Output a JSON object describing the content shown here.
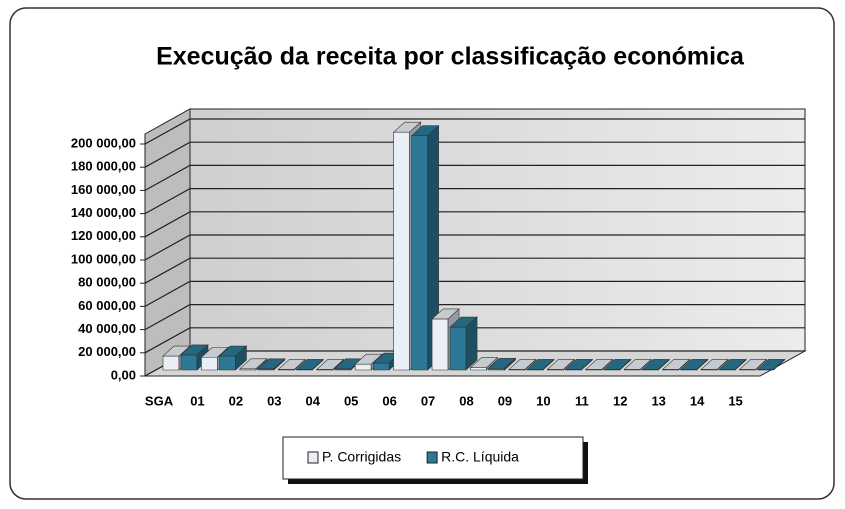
{
  "chart_data": {
    "type": "bar3d",
    "title": "Execução da receita por classificação económica",
    "categories": [
      "SGA",
      "01",
      "02",
      "03",
      "04",
      "05",
      "06",
      "07",
      "08",
      "09",
      "10",
      "11",
      "12",
      "13",
      "14",
      "15"
    ],
    "series": [
      {
        "name": "P. Corrigidas",
        "color": "#e9eff5",
        "values": [
          12000,
          11000,
          1000,
          500,
          500,
          5000,
          205000,
          44000,
          2000,
          500,
          500,
          500,
          500,
          500,
          500,
          500
        ]
      },
      {
        "name": "R.C. Líquida",
        "color": "#2c7896",
        "values": [
          13000,
          12000,
          1000,
          500,
          1000,
          6000,
          202000,
          37000,
          1500,
          500,
          500,
          500,
          500,
          500,
          500,
          500
        ]
      }
    ],
    "ylim": [
      0,
      200000
    ],
    "yticks": [
      {
        "value": 0,
        "label": "0,00"
      },
      {
        "value": 20000,
        "label": "20 000,00"
      },
      {
        "value": 40000,
        "label": "40 000,00"
      },
      {
        "value": 60000,
        "label": "60 000,00"
      },
      {
        "value": 80000,
        "label": "80 000,00"
      },
      {
        "value": 100000,
        "label": "100 000,00"
      },
      {
        "value": 120000,
        "label": "120 000,00"
      },
      {
        "value": 140000,
        "label": "140 000,00"
      },
      {
        "value": 160000,
        "label": "160 000,00"
      },
      {
        "value": 180000,
        "label": "180 000,00"
      },
      {
        "value": 200000,
        "label": "200 000,00"
      }
    ],
    "grid": true,
    "legend": "bottom"
  }
}
